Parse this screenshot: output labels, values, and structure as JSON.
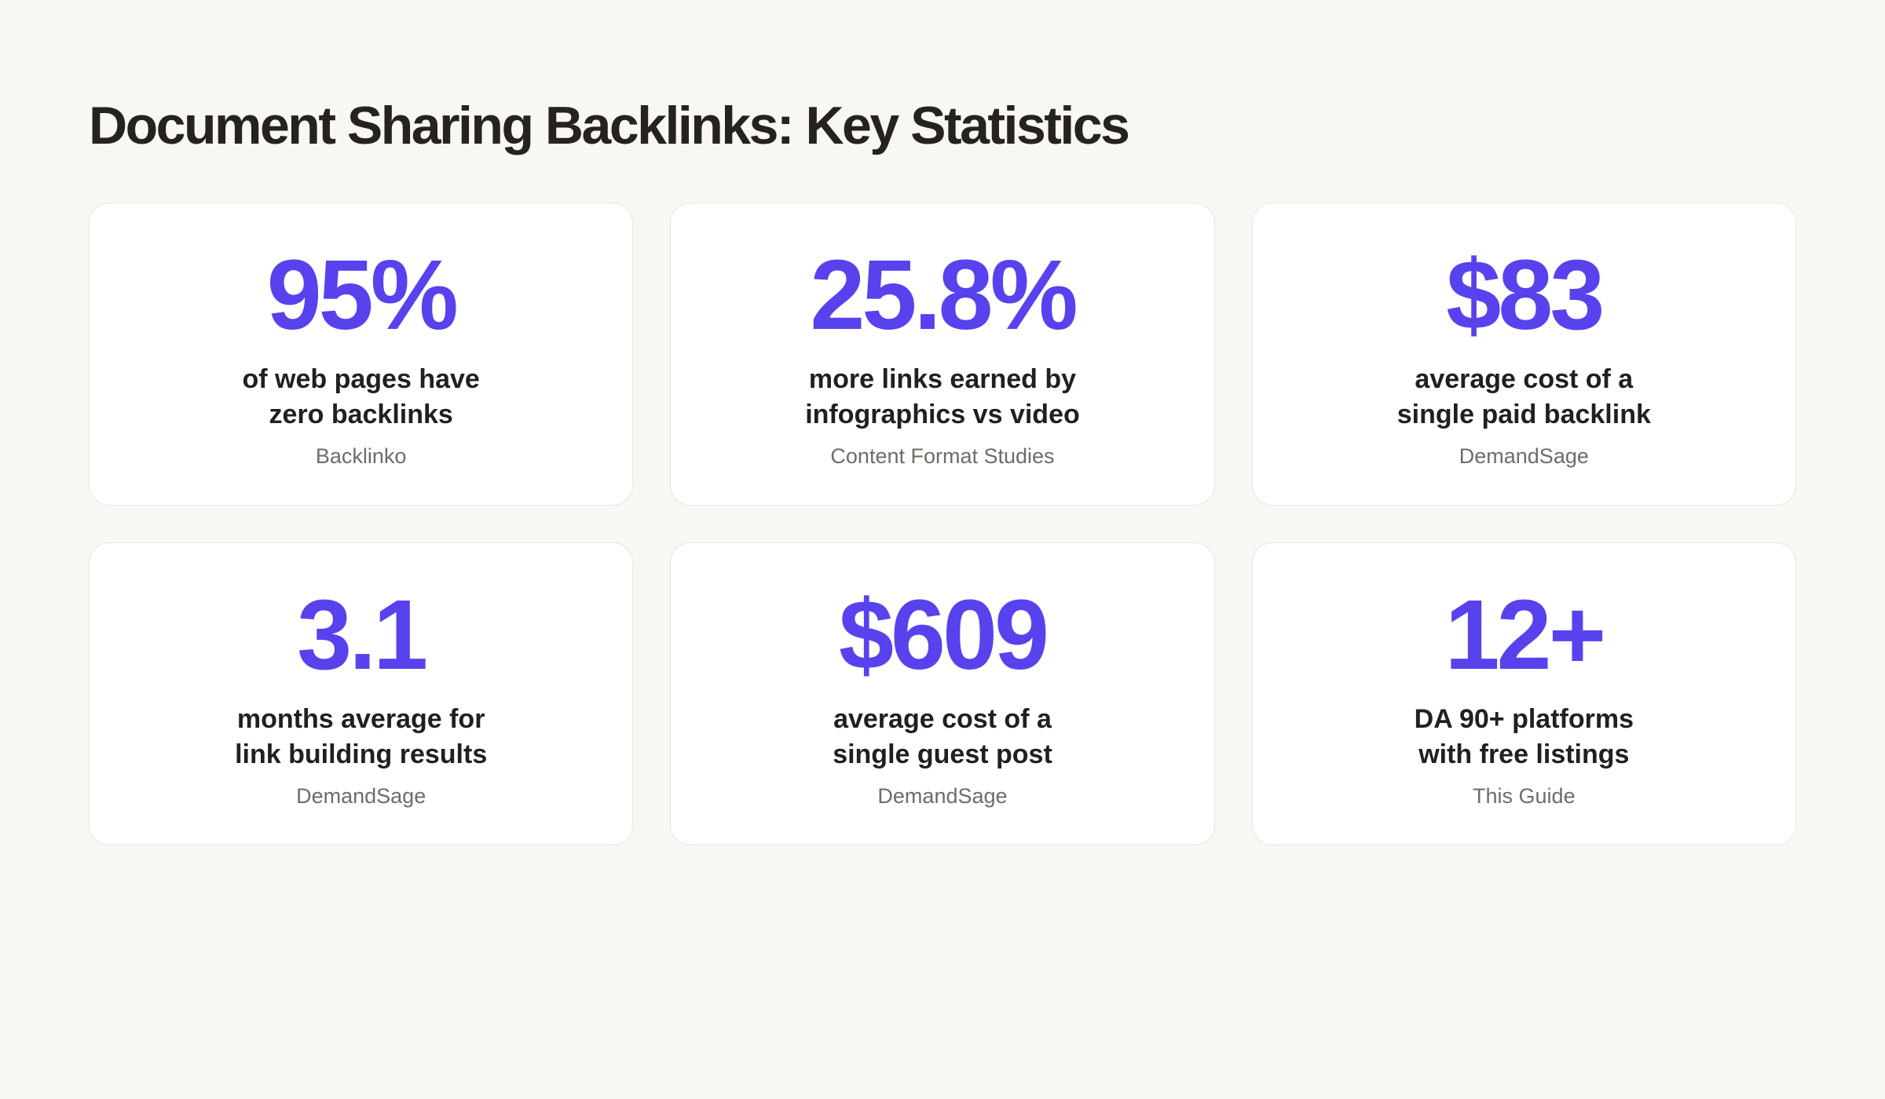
{
  "page": {
    "title": "Document Sharing Backlinks: Key Statistics"
  },
  "colors": {
    "accent": "#5742EE",
    "background": "#F8F7F4",
    "card_background": "#FFFFFF",
    "card_border": "#E8E6E2",
    "title_text": "#25221F",
    "body_text": "#212020",
    "source_text": "#6F6B66"
  },
  "stats": [
    {
      "value": "95%",
      "description_line1": "of web pages have",
      "description_line2": "zero backlinks",
      "source": "Backlinko"
    },
    {
      "value": "25.8%",
      "description_line1": "more links earned by",
      "description_line2": "infographics vs video",
      "source": "Content Format Studies"
    },
    {
      "value": "$83",
      "description_line1": "average cost of a",
      "description_line2": "single paid backlink",
      "source": "DemandSage"
    },
    {
      "value": "3.1",
      "description_line1": "months average for",
      "description_line2": "link building results",
      "source": "DemandSage"
    },
    {
      "value": "$609",
      "description_line1": "average cost of a",
      "description_line2": "single guest post",
      "source": "DemandSage"
    },
    {
      "value": "12+",
      "description_line1": "DA 90+ platforms",
      "description_line2": "with free listings",
      "source": "This Guide"
    }
  ]
}
